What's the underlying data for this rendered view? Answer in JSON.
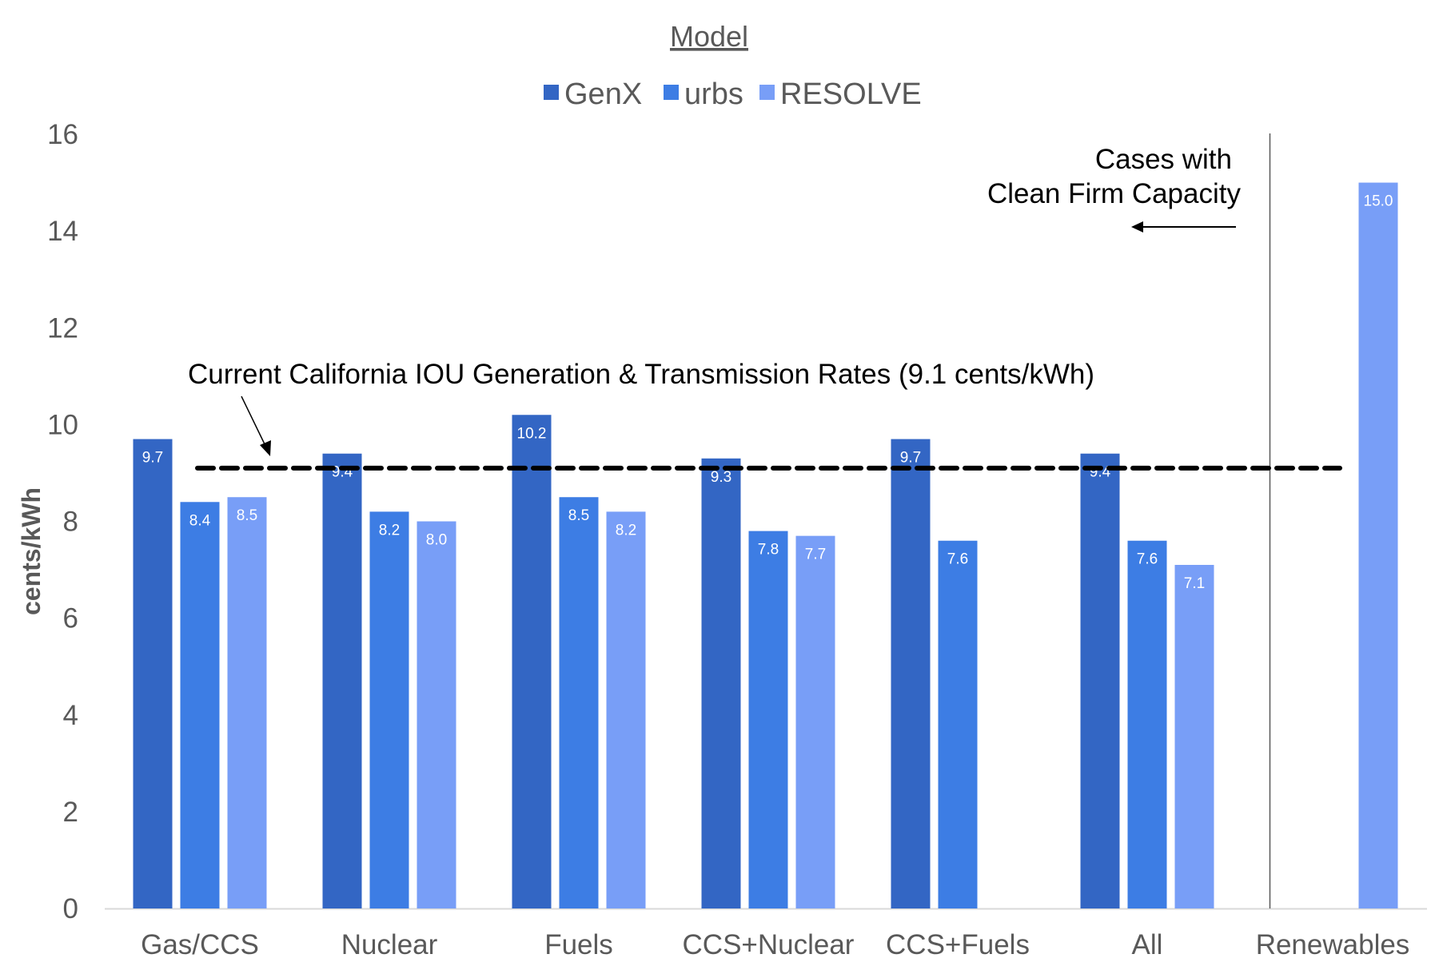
{
  "chart_data": {
    "type": "bar",
    "title": "",
    "legend_title": "Model",
    "legend_position": "top-center",
    "xlabel": "",
    "ylabel": "cents/kWh",
    "ylim": [
      0,
      16
    ],
    "yticks": [
      0,
      2,
      4,
      6,
      8,
      10,
      12,
      14,
      16
    ],
    "grid": false,
    "categories": [
      "Gas/CCS",
      "Nuclear",
      "Fuels",
      "CCS+Nuclear",
      "CCS+Fuels",
      "All",
      "Renewables"
    ],
    "series": [
      {
        "name": "GenX",
        "color": "#3366C4",
        "values": [
          9.7,
          9.4,
          10.2,
          9.3,
          9.7,
          9.4,
          null
        ],
        "labels": [
          "9.7",
          "9.4",
          "10.2",
          "9.3",
          "9.7",
          "9.4",
          null
        ]
      },
      {
        "name": "urbs",
        "color": "#3D7DE4",
        "values": [
          8.4,
          8.2,
          8.5,
          7.8,
          7.6,
          7.6,
          null
        ],
        "labels": [
          "8.4",
          "8.2",
          "8.5",
          "7.8",
          "7.6",
          "7.6",
          null
        ]
      },
      {
        "name": "RESOLVE",
        "color": "#789EF7",
        "values": [
          8.5,
          8.0,
          8.2,
          7.7,
          null,
          7.1,
          15.0
        ],
        "labels": [
          "8.5",
          "8.0",
          "8.2",
          "7.7",
          null,
          "7.1",
          "15.0"
        ]
      }
    ],
    "reference_line": {
      "value": 9.1,
      "style": "dashed",
      "color": "#000000",
      "label": "Current California IOU Generation & Transmission Rates (9.1 cents/kWh)"
    },
    "separator_after_category": "All",
    "annotations": [
      {
        "text_lines": [
          "Cases with",
          "Clean Firm Capacity"
        ],
        "arrow_direction": "left"
      }
    ]
  }
}
